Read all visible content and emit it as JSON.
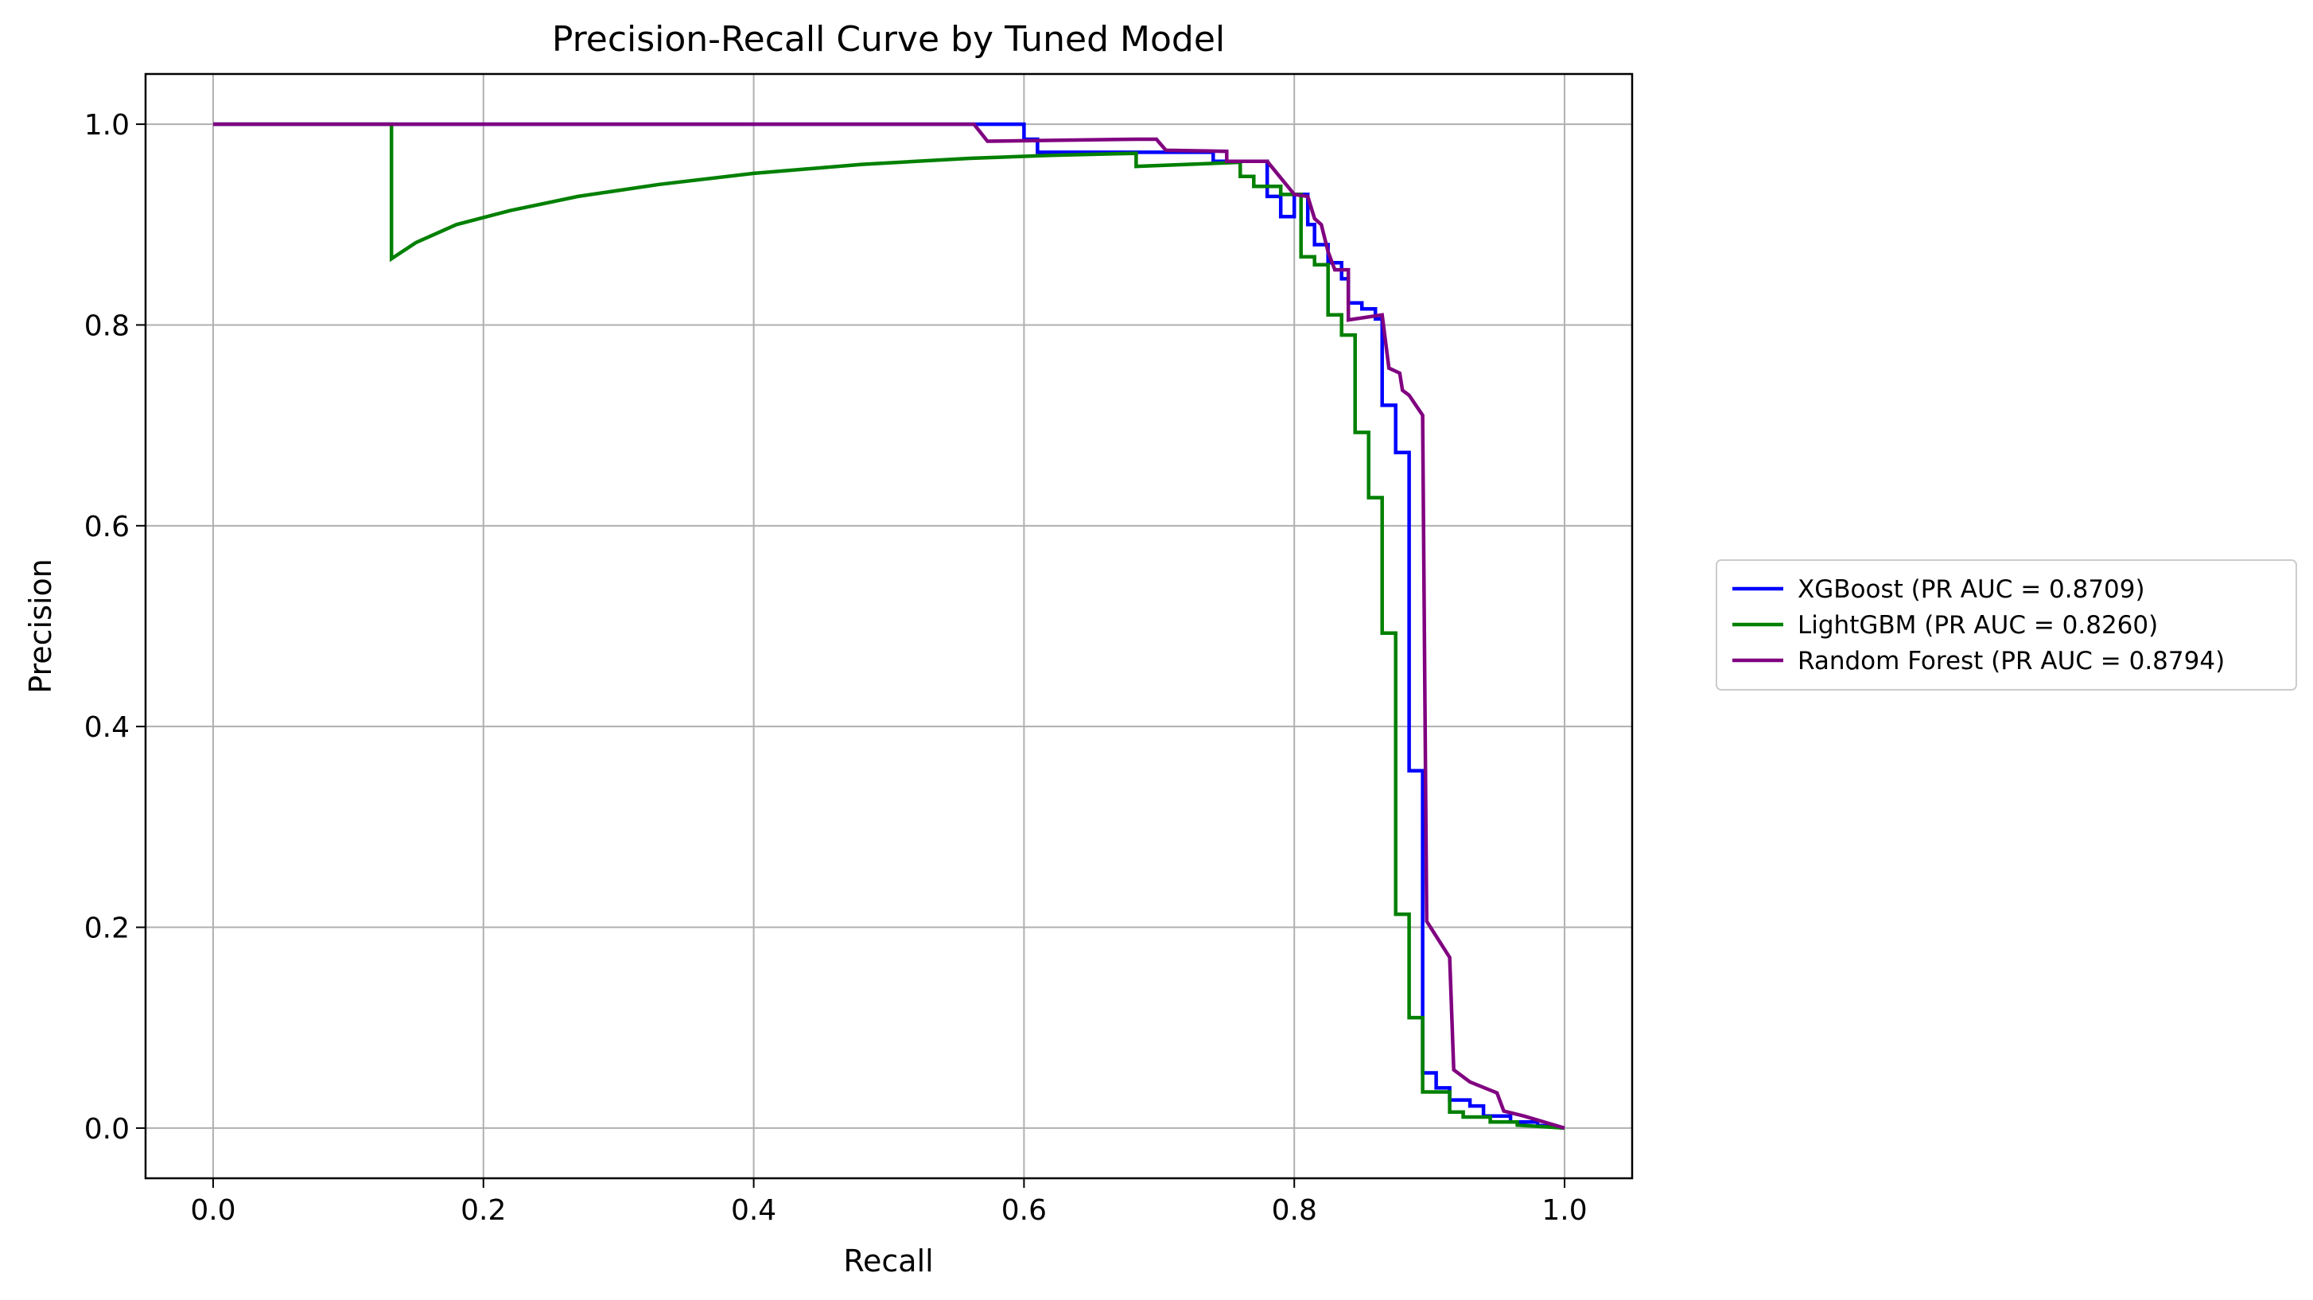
{
  "chart_data": {
    "type": "line",
    "title": "Precision-Recall Curve by Tuned Model",
    "xlabel": "Recall",
    "ylabel": "Precision",
    "xlim": [
      -0.05,
      1.05
    ],
    "ylim": [
      -0.05,
      1.05
    ],
    "x_ticks": [
      0.0,
      0.2,
      0.4,
      0.6,
      0.8,
      1.0
    ],
    "y_ticks": [
      0.0,
      0.2,
      0.4,
      0.6,
      0.8,
      1.0
    ],
    "x_tick_labels": [
      "0.0",
      "0.2",
      "0.4",
      "0.6",
      "0.8",
      "1.0"
    ],
    "y_tick_labels": [
      "0.0",
      "0.2",
      "0.4",
      "0.6",
      "0.8",
      "1.0"
    ],
    "grid": true,
    "legend_position": "outside-right",
    "series": [
      {
        "name": "XGBoost (PR AUC = 0.8709)",
        "color": "#0000ff",
        "points": [
          [
            0.0,
            1.0
          ],
          [
            0.6,
            1.0
          ],
          [
            0.6,
            0.985
          ],
          [
            0.61,
            0.985
          ],
          [
            0.61,
            0.972
          ],
          [
            0.74,
            0.972
          ],
          [
            0.74,
            0.963
          ],
          [
            0.78,
            0.963
          ],
          [
            0.78,
            0.928
          ],
          [
            0.79,
            0.928
          ],
          [
            0.79,
            0.908
          ],
          [
            0.8,
            0.908
          ],
          [
            0.8,
            0.93
          ],
          [
            0.81,
            0.93
          ],
          [
            0.81,
            0.9
          ],
          [
            0.815,
            0.9
          ],
          [
            0.815,
            0.88
          ],
          [
            0.825,
            0.88
          ],
          [
            0.825,
            0.862
          ],
          [
            0.835,
            0.862
          ],
          [
            0.835,
            0.846
          ],
          [
            0.84,
            0.846
          ],
          [
            0.84,
            0.822
          ],
          [
            0.85,
            0.822
          ],
          [
            0.85,
            0.816
          ],
          [
            0.86,
            0.816
          ],
          [
            0.86,
            0.806
          ],
          [
            0.865,
            0.806
          ],
          [
            0.865,
            0.72
          ],
          [
            0.875,
            0.72
          ],
          [
            0.875,
            0.673
          ],
          [
            0.885,
            0.673
          ],
          [
            0.885,
            0.356
          ],
          [
            0.895,
            0.356
          ],
          [
            0.895,
            0.055
          ],
          [
            0.905,
            0.055
          ],
          [
            0.905,
            0.04
          ],
          [
            0.915,
            0.04
          ],
          [
            0.915,
            0.028
          ],
          [
            0.93,
            0.028
          ],
          [
            0.93,
            0.022
          ],
          [
            0.94,
            0.022
          ],
          [
            0.94,
            0.012
          ],
          [
            0.96,
            0.012
          ],
          [
            0.96,
            0.006
          ],
          [
            0.98,
            0.006
          ],
          [
            0.98,
            0.003
          ],
          [
            1.0,
            0.0
          ]
        ]
      },
      {
        "name": "LightGBM (PR AUC = 0.8260)",
        "color": "#008000",
        "points": [
          [
            0.0,
            1.0
          ],
          [
            0.132,
            1.0
          ],
          [
            0.132,
            0.866
          ],
          [
            0.15,
            0.882
          ],
          [
            0.18,
            0.9
          ],
          [
            0.22,
            0.914
          ],
          [
            0.27,
            0.928
          ],
          [
            0.33,
            0.94
          ],
          [
            0.4,
            0.951
          ],
          [
            0.48,
            0.96
          ],
          [
            0.56,
            0.966
          ],
          [
            0.62,
            0.969
          ],
          [
            0.683,
            0.971
          ],
          [
            0.683,
            0.958
          ],
          [
            0.76,
            0.962
          ],
          [
            0.76,
            0.948
          ],
          [
            0.77,
            0.948
          ],
          [
            0.77,
            0.938
          ],
          [
            0.79,
            0.938
          ],
          [
            0.79,
            0.93
          ],
          [
            0.805,
            0.93
          ],
          [
            0.805,
            0.868
          ],
          [
            0.815,
            0.868
          ],
          [
            0.815,
            0.86
          ],
          [
            0.825,
            0.86
          ],
          [
            0.825,
            0.81
          ],
          [
            0.835,
            0.81
          ],
          [
            0.835,
            0.79
          ],
          [
            0.845,
            0.79
          ],
          [
            0.845,
            0.693
          ],
          [
            0.855,
            0.693
          ],
          [
            0.855,
            0.628
          ],
          [
            0.865,
            0.628
          ],
          [
            0.865,
            0.493
          ],
          [
            0.875,
            0.493
          ],
          [
            0.875,
            0.213
          ],
          [
            0.885,
            0.213
          ],
          [
            0.885,
            0.11
          ],
          [
            0.895,
            0.11
          ],
          [
            0.895,
            0.036
          ],
          [
            0.915,
            0.036
          ],
          [
            0.915,
            0.016
          ],
          [
            0.925,
            0.016
          ],
          [
            0.925,
            0.011
          ],
          [
            0.945,
            0.011
          ],
          [
            0.945,
            0.006
          ],
          [
            0.965,
            0.006
          ],
          [
            0.965,
            0.003
          ],
          [
            1.0,
            0.0
          ]
        ]
      },
      {
        "name": "Random Forest (PR AUC = 0.8794)",
        "color": "#800080",
        "points": [
          [
            0.0,
            1.0
          ],
          [
            0.563,
            1.0
          ],
          [
            0.573,
            0.983
          ],
          [
            0.683,
            0.985
          ],
          [
            0.698,
            0.985
          ],
          [
            0.705,
            0.974
          ],
          [
            0.75,
            0.973
          ],
          [
            0.75,
            0.963
          ],
          [
            0.78,
            0.963
          ],
          [
            0.8,
            0.93
          ],
          [
            0.81,
            0.928
          ],
          [
            0.815,
            0.906
          ],
          [
            0.82,
            0.9
          ],
          [
            0.825,
            0.873
          ],
          [
            0.83,
            0.855
          ],
          [
            0.84,
            0.855
          ],
          [
            0.84,
            0.805
          ],
          [
            0.865,
            0.81
          ],
          [
            0.87,
            0.757
          ],
          [
            0.878,
            0.752
          ],
          [
            0.88,
            0.735
          ],
          [
            0.885,
            0.73
          ],
          [
            0.895,
            0.71
          ],
          [
            0.898,
            0.206
          ],
          [
            0.915,
            0.17
          ],
          [
            0.918,
            0.058
          ],
          [
            0.93,
            0.046
          ],
          [
            0.95,
            0.035
          ],
          [
            0.955,
            0.017
          ],
          [
            0.97,
            0.012
          ],
          [
            1.0,
            0.0
          ]
        ]
      }
    ]
  }
}
